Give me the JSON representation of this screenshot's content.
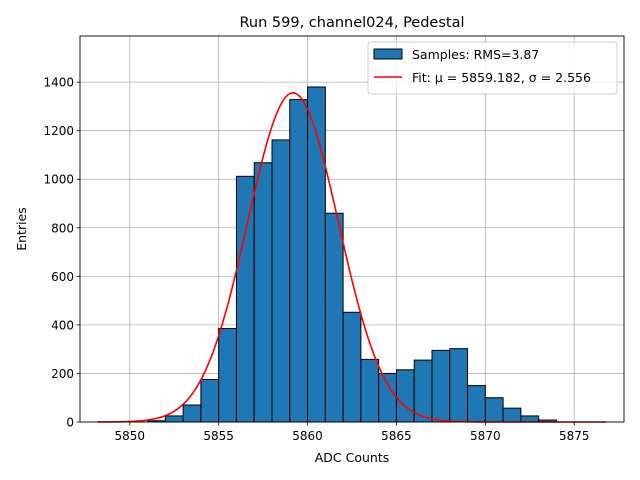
{
  "chart_data": {
    "type": "bar",
    "title": "Run 599, channel024, Pedestal",
    "xlabel": "ADC Counts",
    "ylabel": "Entries",
    "xlim": [
      5847.2,
      5877.8
    ],
    "ylim": [
      0,
      1590
    ],
    "xticks": [
      5850,
      5855,
      5860,
      5865,
      5870,
      5875
    ],
    "yticks": [
      0,
      200,
      400,
      600,
      800,
      1000,
      1200,
      1400
    ],
    "grid": true,
    "legend_position": "top-right",
    "bin_width": 1,
    "bins": [
      {
        "left": 5851,
        "value": 5
      },
      {
        "left": 5852,
        "value": 25
      },
      {
        "left": 5853,
        "value": 70
      },
      {
        "left": 5854,
        "value": 175
      },
      {
        "left": 5855,
        "value": 385
      },
      {
        "left": 5856,
        "value": 1012
      },
      {
        "left": 5857,
        "value": 1068
      },
      {
        "left": 5858,
        "value": 1162
      },
      {
        "left": 5859,
        "value": 1328
      },
      {
        "left": 5860,
        "value": 1380
      },
      {
        "left": 5861,
        "value": 860
      },
      {
        "left": 5862,
        "value": 452
      },
      {
        "left": 5863,
        "value": 258
      },
      {
        "left": 5864,
        "value": 200
      },
      {
        "left": 5865,
        "value": 215
      },
      {
        "left": 5866,
        "value": 255
      },
      {
        "left": 5867,
        "value": 295
      },
      {
        "left": 5868,
        "value": 302
      },
      {
        "left": 5869,
        "value": 150
      },
      {
        "left": 5870,
        "value": 100
      },
      {
        "left": 5871,
        "value": 57
      },
      {
        "left": 5872,
        "value": 25
      },
      {
        "left": 5873,
        "value": 8
      }
    ],
    "fit": {
      "mu": 5859.182,
      "sigma": 2.556,
      "amplitude": 1356,
      "x_range": [
        5848.2,
        5876.8
      ]
    },
    "series": [
      {
        "name": "Samples: RMS=3.87",
        "type": "histogram",
        "color": "#1f77b4",
        "edge": "#000000"
      },
      {
        "name": "Fit: μ = 5859.182, σ = 2.556",
        "type": "line",
        "color": "#ff0000"
      }
    ]
  }
}
